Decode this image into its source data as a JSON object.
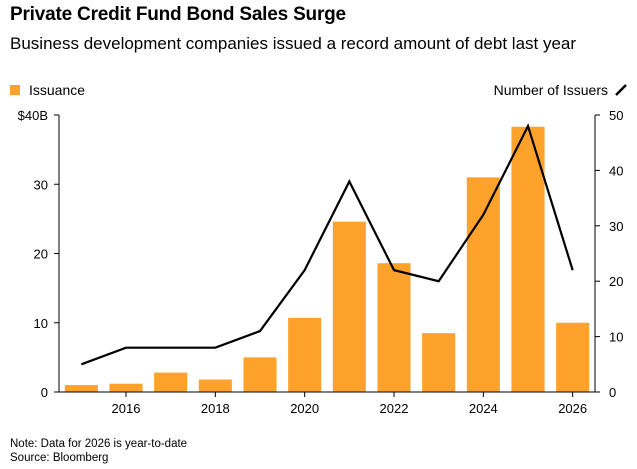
{
  "header": {
    "title": "Private Credit Fund Bond Sales Surge",
    "subtitle": "Business development companies issued a record amount of debt last year"
  },
  "legend": {
    "bar_label": "Issuance",
    "line_label": "Number of Issuers"
  },
  "colors": {
    "bar": "#FFA22B",
    "line": "#000000",
    "axis": "#000000"
  },
  "footer": {
    "note": "Note: Data for 2026 is year-to-date",
    "source": "Source: Bloomberg"
  },
  "chart_data": {
    "type": "bar",
    "title": "Private Credit Fund Bond Sales Surge",
    "subtitle": "Business development companies issued a record amount of debt last year",
    "x": [
      2015,
      2016,
      2017,
      2018,
      2019,
      2020,
      2021,
      2022,
      2023,
      2024,
      2025,
      2026
    ],
    "x_tick_labels": [
      "2016",
      "2018",
      "2020",
      "2022",
      "2024",
      "2026"
    ],
    "x_tick_values": [
      2016,
      2018,
      2020,
      2022,
      2024,
      2026
    ],
    "series": [
      {
        "name": "Issuance",
        "type": "bar",
        "axis": "left",
        "values": [
          1.0,
          1.2,
          2.8,
          1.8,
          5.0,
          10.7,
          24.6,
          18.6,
          8.5,
          31.0,
          38.3,
          10.0
        ]
      },
      {
        "name": "Number of Issuers",
        "type": "line",
        "axis": "right",
        "values": [
          5,
          8,
          8,
          8,
          11,
          22,
          38,
          22,
          20,
          32,
          48,
          22
        ]
      }
    ],
    "left_axis": {
      "ylim": [
        0,
        40
      ],
      "ticks": [
        0,
        10,
        20,
        30,
        40
      ],
      "tick_labels": [
        "0",
        "10",
        "20",
        "30",
        "$40B"
      ]
    },
    "right_axis": {
      "ylim": [
        0,
        50
      ],
      "ticks": [
        0,
        10,
        20,
        30,
        40,
        50
      ],
      "tick_labels": [
        "0",
        "10",
        "20",
        "30",
        "40",
        "50"
      ]
    },
    "grid": false,
    "legend_position": "top"
  }
}
